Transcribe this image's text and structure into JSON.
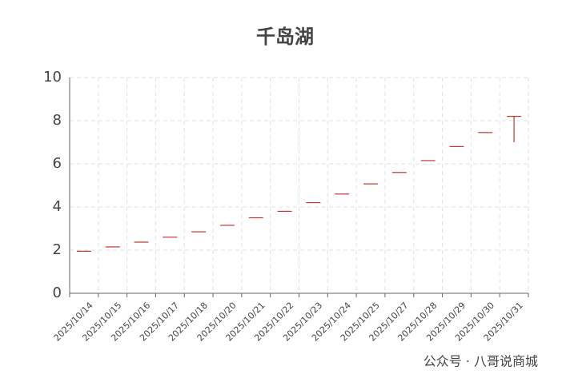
{
  "chart_data": {
    "type": "candlestick",
    "title": "千岛湖",
    "categories": [
      "2025/10/14",
      "2025/10/15",
      "2025/10/16",
      "2025/10/17",
      "2025/10/18",
      "2025/10/20",
      "2025/10/21",
      "2025/10/22",
      "2025/10/23",
      "2025/10/24",
      "2025/10/25",
      "2025/10/27",
      "2025/10/28",
      "2025/10/29",
      "2025/10/30",
      "2025/10/31"
    ],
    "series": [
      {
        "color": "#c23531",
        "open": [
          1.95,
          2.15,
          2.37,
          2.6,
          2.85,
          3.15,
          3.5,
          3.8,
          4.2,
          4.6,
          5.07,
          5.6,
          6.15,
          6.8,
          7.45,
          8.2
        ],
        "close": [
          1.95,
          2.15,
          2.37,
          2.6,
          2.85,
          3.15,
          3.5,
          3.8,
          4.2,
          4.6,
          5.07,
          5.6,
          6.15,
          6.8,
          7.45,
          8.2
        ],
        "low": [
          1.95,
          2.15,
          2.37,
          2.6,
          2.85,
          3.15,
          3.5,
          3.8,
          4.2,
          4.6,
          5.07,
          5.6,
          6.15,
          6.8,
          7.45,
          7.0
        ],
        "high": [
          1.95,
          2.15,
          2.37,
          2.6,
          2.85,
          3.15,
          3.5,
          3.8,
          4.2,
          4.6,
          5.07,
          5.6,
          6.15,
          6.8,
          7.45,
          8.2
        ]
      }
    ],
    "ylim": [
      0,
      10
    ],
    "yticks": [
      0,
      2,
      4,
      6,
      8,
      10
    ],
    "grid": true,
    "annotation": "公众号 · 八哥说商城"
  }
}
